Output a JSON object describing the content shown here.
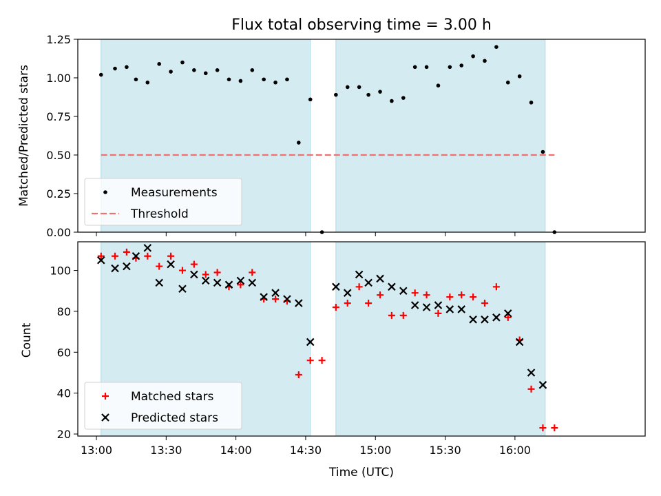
{
  "chart_data": [
    {
      "type": "scatter",
      "title": "Flux total observing time = 3.00 h",
      "xlabel": "",
      "ylabel": "Matched/Predicted stars",
      "xlim": [
        "12:52",
        "16:56"
      ],
      "ylim": [
        0,
        1.25
      ],
      "yticks": [
        "0.00",
        "0.25",
        "0.50",
        "0.75",
        "1.00",
        "1.25"
      ],
      "xticks": [
        "13:00",
        "13:30",
        "14:00",
        "14:30",
        "15:00",
        "15:30",
        "16:00"
      ],
      "shaded_intervals": [
        [
          "13:02",
          "14:32"
        ],
        [
          "14:43",
          "16:13"
        ]
      ],
      "shade_color": "#add8e6",
      "series": [
        {
          "name": "Measurements",
          "marker": "dot",
          "color": "#000000",
          "points": [
            [
              "13:02",
              1.02
            ],
            [
              "13:08",
              1.06
            ],
            [
              "13:13",
              1.07
            ],
            [
              "13:17",
              0.99
            ],
            [
              "13:22",
              0.97
            ],
            [
              "13:27",
              1.09
            ],
            [
              "13:32",
              1.04
            ],
            [
              "13:37",
              1.1
            ],
            [
              "13:42",
              1.05
            ],
            [
              "13:47",
              1.03
            ],
            [
              "13:52",
              1.05
            ],
            [
              "13:57",
              0.99
            ],
            [
              "14:02",
              0.98
            ],
            [
              "14:07",
              1.05
            ],
            [
              "14:12",
              0.99
            ],
            [
              "14:17",
              0.97
            ],
            [
              "14:22",
              0.99
            ],
            [
              "14:27",
              0.58
            ],
            [
              "14:32",
              0.86
            ],
            [
              "14:37",
              0.0
            ],
            [
              "14:43",
              0.89
            ],
            [
              "14:48",
              0.94
            ],
            [
              "14:53",
              0.94
            ],
            [
              "14:57",
              0.89
            ],
            [
              "15:02",
              0.91
            ],
            [
              "15:07",
              0.85
            ],
            [
              "15:12",
              0.87
            ],
            [
              "15:17",
              1.07
            ],
            [
              "15:22",
              1.07
            ],
            [
              "15:27",
              0.95
            ],
            [
              "15:32",
              1.07
            ],
            [
              "15:37",
              1.08
            ],
            [
              "15:42",
              1.14
            ],
            [
              "15:47",
              1.11
            ],
            [
              "15:52",
              1.2
            ],
            [
              "15:57",
              0.97
            ],
            [
              "16:02",
              1.01
            ],
            [
              "16:07",
              0.84
            ],
            [
              "16:12",
              0.52
            ],
            [
              "16:17",
              0.0
            ]
          ]
        },
        {
          "name": "Threshold",
          "marker": "dashed-line",
          "color": "#f07070",
          "points": [
            [
              "13:02",
              0.5
            ],
            [
              "16:17",
              0.5
            ]
          ]
        }
      ],
      "legend_position": "lower-left"
    },
    {
      "type": "scatter",
      "title": "",
      "xlabel": "Time (UTC)",
      "ylabel": "Count",
      "xlim": [
        "12:52",
        "16:56"
      ],
      "ylim": [
        19,
        114
      ],
      "yticks": [
        "20",
        "40",
        "60",
        "80",
        "100"
      ],
      "xticks": [
        "13:00",
        "13:30",
        "14:00",
        "14:30",
        "15:00",
        "15:30",
        "16:00"
      ],
      "shaded_intervals": [
        [
          "13:02",
          "14:32"
        ],
        [
          "14:43",
          "16:13"
        ]
      ],
      "shade_color": "#add8e6",
      "series": [
        {
          "name": "Matched stars",
          "marker": "plus",
          "color": "#ff0000",
          "points": [
            [
              "13:02",
              107
            ],
            [
              "13:08",
              107
            ],
            [
              "13:13",
              109
            ],
            [
              "13:17",
              106
            ],
            [
              "13:22",
              107
            ],
            [
              "13:27",
              102
            ],
            [
              "13:32",
              107
            ],
            [
              "13:37",
              100
            ],
            [
              "13:42",
              103
            ],
            [
              "13:47",
              98
            ],
            [
              "13:52",
              99
            ],
            [
              "13:57",
              92
            ],
            [
              "14:02",
              93
            ],
            [
              "14:07",
              99
            ],
            [
              "14:12",
              86
            ],
            [
              "14:17",
              86
            ],
            [
              "14:22",
              85
            ],
            [
              "14:27",
              49
            ],
            [
              "14:32",
              56
            ],
            [
              "14:37",
              56
            ],
            [
              "14:43",
              82
            ],
            [
              "14:48",
              84
            ],
            [
              "14:53",
              92
            ],
            [
              "14:57",
              84
            ],
            [
              "15:02",
              88
            ],
            [
              "15:07",
              78
            ],
            [
              "15:12",
              78
            ],
            [
              "15:17",
              89
            ],
            [
              "15:22",
              88
            ],
            [
              "15:27",
              79
            ],
            [
              "15:32",
              87
            ],
            [
              "15:37",
              88
            ],
            [
              "15:42",
              87
            ],
            [
              "15:47",
              84
            ],
            [
              "15:52",
              92
            ],
            [
              "15:57",
              77
            ],
            [
              "16:02",
              66
            ],
            [
              "16:07",
              42
            ],
            [
              "16:12",
              23
            ],
            [
              "16:17",
              23
            ]
          ]
        },
        {
          "name": "Predicted stars",
          "marker": "x",
          "color": "#000000",
          "points": [
            [
              "13:02",
              105
            ],
            [
              "13:08",
              101
            ],
            [
              "13:13",
              102
            ],
            [
              "13:17",
              107
            ],
            [
              "13:22",
              111
            ],
            [
              "13:27",
              94
            ],
            [
              "13:32",
              103
            ],
            [
              "13:37",
              91
            ],
            [
              "13:42",
              98
            ],
            [
              "13:47",
              95
            ],
            [
              "13:52",
              94
            ],
            [
              "13:57",
              93
            ],
            [
              "14:02",
              95
            ],
            [
              "14:07",
              94
            ],
            [
              "14:12",
              87
            ],
            [
              "14:17",
              89
            ],
            [
              "14:22",
              86
            ],
            [
              "14:27",
              84
            ],
            [
              "14:32",
              65
            ],
            [
              "14:43",
              92
            ],
            [
              "14:48",
              89
            ],
            [
              "14:53",
              98
            ],
            [
              "14:57",
              94
            ],
            [
              "15:02",
              96
            ],
            [
              "15:07",
              92
            ],
            [
              "15:12",
              90
            ],
            [
              "15:17",
              83
            ],
            [
              "15:22",
              82
            ],
            [
              "15:27",
              83
            ],
            [
              "15:32",
              81
            ],
            [
              "15:37",
              81
            ],
            [
              "15:42",
              76
            ],
            [
              "15:47",
              76
            ],
            [
              "15:52",
              77
            ],
            [
              "15:57",
              79
            ],
            [
              "16:02",
              65
            ],
            [
              "16:07",
              50
            ],
            [
              "16:12",
              44
            ]
          ]
        }
      ],
      "legend_position": "lower-left"
    }
  ]
}
